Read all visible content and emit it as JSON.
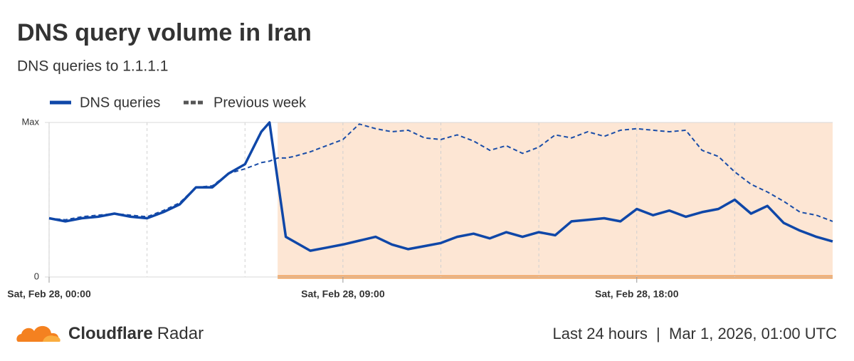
{
  "chart_data": {
    "type": "line",
    "title": "DNS query volume in Iran",
    "subtitle": "DNS queries to 1.1.1.1",
    "x": [
      0,
      0.5,
      1,
      1.5,
      2,
      2.5,
      3,
      3.5,
      4,
      4.5,
      5,
      5.5,
      6,
      6.5,
      6.75,
      7,
      7.25,
      7.5,
      8,
      8.5,
      9,
      9.5,
      10,
      10.5,
      11,
      11.5,
      12,
      12.5,
      13,
      13.5,
      14,
      14.5,
      15,
      15.5,
      16,
      16.5,
      17,
      17.5,
      18,
      18.5,
      19,
      19.5,
      20,
      20.5,
      21,
      21.5,
      22,
      22.5,
      23,
      23.5,
      24
    ],
    "series": [
      {
        "name": "DNS queries",
        "color": "#0f47a8",
        "dashed": false,
        "values": [
          38,
          36,
          38,
          39,
          41,
          39,
          38,
          42,
          47,
          58,
          58,
          67,
          73,
          94,
          100,
          63,
          26,
          23,
          17,
          19,
          21,
          23.5,
          26,
          21,
          18,
          20,
          22,
          26,
          28,
          25,
          29,
          26,
          29,
          27,
          36,
          37,
          38,
          36,
          44,
          40,
          43,
          39,
          42,
          44,
          50,
          41,
          46,
          35,
          30,
          26,
          23
        ]
      },
      {
        "name": "Previous week",
        "color": "#1a4da8",
        "dashed": true,
        "values": [
          38,
          37,
          39,
          40,
          41,
          40,
          39,
          43,
          48,
          58,
          59,
          67,
          70,
          74,
          75,
          77,
          77,
          78,
          81,
          85,
          89,
          99,
          96,
          94,
          95,
          90,
          89,
          92,
          88,
          82,
          85,
          80,
          84,
          92,
          90,
          94,
          91,
          95,
          96,
          95,
          94,
          95,
          82,
          78,
          68,
          60,
          55,
          49,
          42,
          40,
          36
        ]
      }
    ],
    "xlim": [
      0,
      24
    ],
    "xticks": [
      {
        "value": 0,
        "label": "Sat, Feb 28, 00:00"
      },
      {
        "value": 9,
        "label": "Sat, Feb 28, 09:00"
      },
      {
        "value": 18,
        "label": "Sat, Feb 28, 18:00"
      }
    ],
    "x_minor_ticks": [
      3,
      6,
      12,
      15,
      21
    ],
    "ylim": [
      0,
      100
    ],
    "yticks": [
      {
        "value": 0,
        "label": "0"
      },
      {
        "value": 100,
        "label": "Max"
      }
    ],
    "shaded_range": [
      7,
      24
    ],
    "shade_color": "#fde6d4",
    "shade_edge_color": "#f0a05a"
  },
  "footer": {
    "brand": "Cloudflare",
    "product": "Radar",
    "info": "Last 24 hours  |  Mar 1, 2026, 01:00 UTC"
  }
}
